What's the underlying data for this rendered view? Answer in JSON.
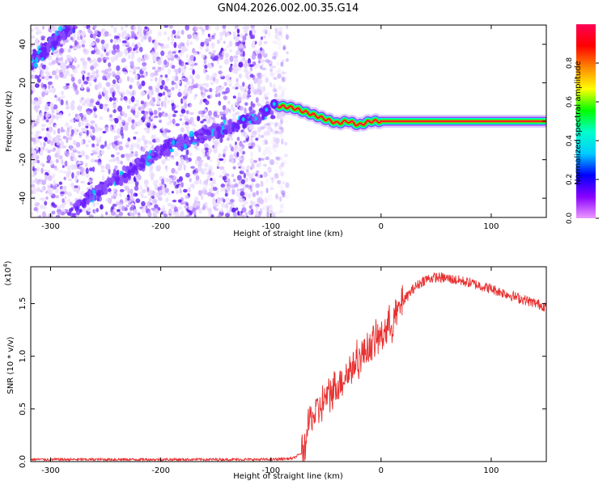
{
  "title": "GN04.2026.002.00.35.G14",
  "chart_data": [
    {
      "type": "heatmap",
      "name": "spectrogram",
      "xlabel": "Height of straight line (km)",
      "ylabel": "Frequency (Hz)",
      "xlim": [
        -318,
        150
      ],
      "ylim": [
        -50,
        50
      ],
      "xticks": [
        -300,
        -200,
        -100,
        0,
        100
      ],
      "yticks": [
        -40,
        -20,
        0,
        20,
        40
      ],
      "colorbar": {
        "label": "Normalized spectral amplitude",
        "range": [
          0,
          1
        ],
        "ticks": [
          "0.0",
          "0.2",
          "0.4",
          "0.6",
          "0.8"
        ],
        "tick_values": [
          0.0,
          0.2,
          0.4,
          0.6,
          0.8
        ],
        "colormap": [
          "#ff0055",
          "#ff0000",
          "#ff8800",
          "#ffff00",
          "#00ff00",
          "#00ffcc",
          "#00ccff",
          "#0000ff",
          "#8800ff",
          "#ee99ff"
        ]
      },
      "ridge_km": [
        -95,
        -80,
        -70,
        -60,
        -50,
        -40,
        -30,
        -20,
        -10,
        0,
        20,
        50,
        80,
        100,
        150
      ],
      "ridge_hz": [
        8,
        7,
        5,
        3,
        1,
        -1,
        0,
        -2,
        0,
        0,
        0,
        0,
        0,
        0,
        0
      ],
      "noise_band_km": [
        -318,
        -100
      ],
      "diagonal_tracks": [
        {
          "x_start_km": -318,
          "y_start_hz": 30,
          "x_end_km": -280,
          "y_end_hz": 50
        },
        {
          "x_start_km": -280,
          "y_start_hz": -46,
          "x_end_km": -200,
          "y_end_hz": -15
        },
        {
          "x_start_km": -200,
          "y_start_hz": -15,
          "x_end_km": -100,
          "y_end_hz": 5
        }
      ]
    },
    {
      "type": "line",
      "name": "snr",
      "xlabel": "Height of straight line (km)",
      "ylabel": "SNR (10 * v/v)",
      "scale_label": "(x10",
      "scale_exponent": "4",
      "xlim": [
        -318,
        150
      ],
      "ylim": [
        0,
        1.85
      ],
      "xticks": [
        -300,
        -200,
        -100,
        0,
        100
      ],
      "yticks": [
        0.0,
        0.5,
        1.0,
        1.5
      ],
      "color": "#e83030",
      "x": [
        -318,
        -200,
        -100,
        -80,
        -72,
        -68,
        -65,
        -60,
        -55,
        -50,
        -40,
        -30,
        -20,
        -10,
        0,
        10,
        20,
        30,
        40,
        50,
        60,
        80,
        100,
        120,
        150
      ],
      "y": [
        0.02,
        0.02,
        0.02,
        0.03,
        0.08,
        0.22,
        0.4,
        0.45,
        0.52,
        0.6,
        0.72,
        0.85,
        0.98,
        1.1,
        1.2,
        1.32,
        1.52,
        1.65,
        1.73,
        1.75,
        1.74,
        1.7,
        1.64,
        1.57,
        1.47
      ]
    }
  ]
}
